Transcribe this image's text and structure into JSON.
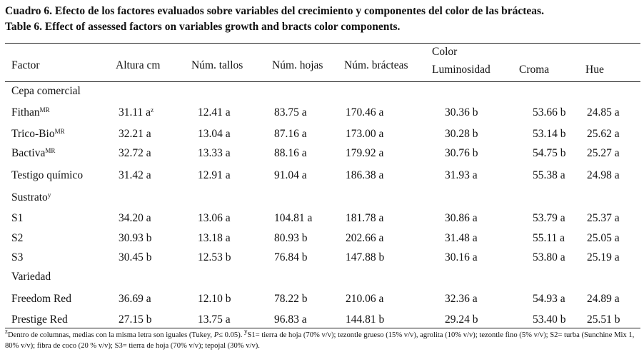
{
  "caption": {
    "spanish": "Cuadro 6. Efecto de los factores evaluados sobre variables del crecimiento y componentes del color de las brácteas.",
    "english": "Table 6. Effect of assessed factors on variables growth and bracts color components."
  },
  "headers": {
    "factor": "Factor",
    "altura": "Altura cm",
    "tallos": "Núm. tallos",
    "hojas": "Núm. hojas",
    "bracteas": "Núm. brácteas",
    "color": "Color",
    "luminosidad": "Luminosidad",
    "croma": "Croma",
    "hue": "Hue"
  },
  "sections": {
    "cepa": "Cepa comercial",
    "sustrato": "Sustrato",
    "sustrato_sup": "y",
    "variedad": "Variedad"
  },
  "rows": [
    {
      "factor": "Fithan",
      "sup": "MR",
      "altura": "31.11 a",
      "altura_sup": "z",
      "tallos": "12.41 a",
      "hojas": "83.75 a",
      "bracteas": "170.46 a",
      "luminosidad": "30.36  b",
      "croma": "53.66 b",
      "hue": "24.85 a"
    },
    {
      "factor": "Trico-Bio",
      "sup": "MR",
      "altura": "32.21 a",
      "tallos": "13.04 a",
      "hojas": "87.16 a",
      "bracteas": "173.00 a",
      "luminosidad": "30.28  b",
      "croma": "53.14 b",
      "hue": "25.62 a"
    },
    {
      "factor": "Bactiva",
      "sup": "MR",
      "altura": "32.72 a",
      "tallos": "13.33 a",
      "hojas": "88.16 a",
      "bracteas": "179.92 a",
      "luminosidad": "30.76  b",
      "croma": "54.75 b",
      "hue": "25.27 a"
    },
    {
      "factor": "Testigo químico",
      "altura": "31.42 a",
      "tallos": "12.91 a",
      "hojas": "91.04 a",
      "bracteas": "186.38 a",
      "luminosidad": "31.93 a",
      "croma": "55.38 a",
      "hue": "24.98 a"
    },
    {
      "factor": "S1",
      "altura": "34.20 a",
      "tallos": "13.06 a",
      "hojas": "104.81 a",
      "bracteas": "181.78 a",
      "luminosidad": "30.86 a",
      "croma": "53.79 a",
      "hue": "25.37 a"
    },
    {
      "factor": "S2",
      "altura": "30.93  b",
      "tallos": "13.18 a",
      "hojas": "80.93  b",
      "bracteas": "202.66 a",
      "luminosidad": "31.48 a",
      "croma": "55.11 a",
      "hue": "25.05 a"
    },
    {
      "factor": "S3",
      "altura": "30.45  b",
      "tallos": "12.53 b",
      "hojas": "76.84  b",
      "bracteas": "147.88  b",
      "luminosidad": "30.16 a",
      "croma": "53.80 a",
      "hue": "25.19 a"
    },
    {
      "factor": "Freedom Red",
      "altura": "36.69 a",
      "tallos": "12.10 b",
      "hojas": "78.22  b",
      "bracteas": "210.06 a",
      "luminosidad": "32.36 a",
      "croma": "54.93 a",
      "hue": "24.89 a"
    },
    {
      "factor": "Prestige Red",
      "altura": "27.15  b",
      "tallos": "13.75 a",
      "hojas": "96.83 a",
      "bracteas": "144.81  b",
      "luminosidad": "29.24  b",
      "croma": "53.40 b",
      "hue": "25.51 b"
    }
  ],
  "footnote": {
    "sup_z": "z",
    "part1": "Dentro de columnas, medias con la misma letra son iguales (Tukey, ",
    "p_symbol": "P",
    "part2": "≤ 0.05). ",
    "sup_y": "y",
    "part3": "S1= tierra de hoja (70% v/v); tezontle grueso (15% v/v), agrolita (10% v/v); tezontle fino (5% v/v); S2= turba (Sunchine Mix 1, 80% v/v); fibra de coco (20 % v/v); S3= tierra de hoja (70% v/v); tepojal (30% v/v)."
  }
}
